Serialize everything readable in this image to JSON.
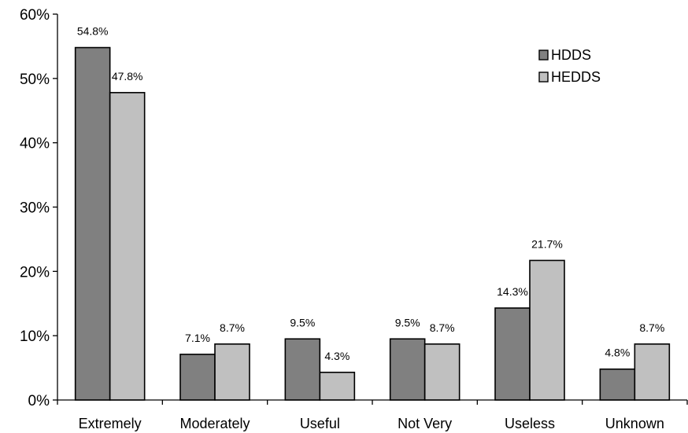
{
  "chart_data": {
    "type": "bar",
    "categories": [
      "Extremely",
      "Moderately",
      "Useful",
      "Not Very",
      "Useless",
      "Unknown"
    ],
    "series": [
      {
        "name": "HDDS",
        "values": [
          54.8,
          7.1,
          9.5,
          9.5,
          14.3,
          4.8
        ],
        "labels": [
          "54.8%",
          "7.1%",
          "9.5%",
          "9.5%",
          "14.3%",
          "4.8%"
        ],
        "color": "#808080"
      },
      {
        "name": "HEDDS",
        "values": [
          47.8,
          8.7,
          4.3,
          8.7,
          21.7,
          8.7
        ],
        "labels": [
          "47.8%",
          "8.7%",
          "4.3%",
          "8.7%",
          "21.7%",
          "8.7%"
        ],
        "color": "#c0c0c0"
      }
    ],
    "ylim": [
      0,
      60
    ],
    "yticks": [
      0,
      10,
      20,
      30,
      40,
      50,
      60
    ],
    "ytick_labels": [
      "0%",
      "10%",
      "20%",
      "30%",
      "40%",
      "50%",
      "60%"
    ],
    "legend_position": "top-right",
    "grid": false
  }
}
